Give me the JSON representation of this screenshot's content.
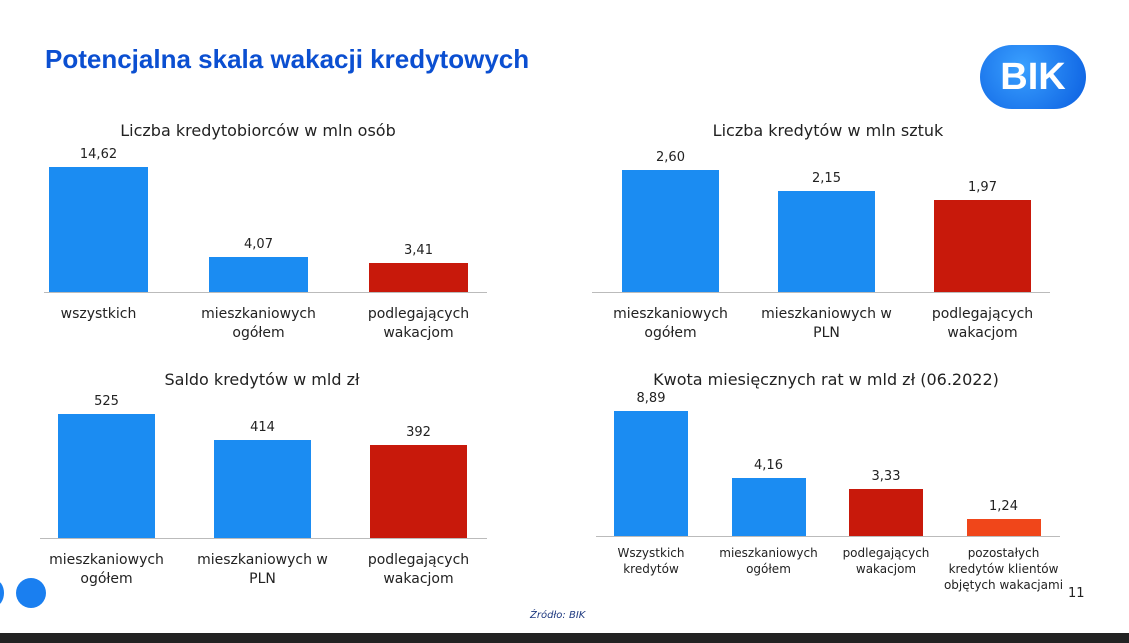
{
  "header": {
    "title": "Potencjalna skala wakacji kredytowych",
    "logo": "BIK"
  },
  "footer": {
    "source": "Źródło: BIK",
    "page": "11"
  },
  "chart_data": [
    {
      "type": "bar",
      "title": "Liczba kredytobiorców w mln osób",
      "categories": [
        "wszystkich",
        "mieszkaniowych\nogółem",
        "podlegających\nwakacjom"
      ],
      "values": [
        14.62,
        4.07,
        3.41
      ],
      "value_labels": [
        "14,62",
        "4,07",
        "3,41"
      ],
      "colors": [
        "#1b8cf2",
        "#1b8cf2",
        "#c8190b"
      ]
    },
    {
      "type": "bar",
      "title": "Liczba kredytów w mln sztuk",
      "categories": [
        "mieszkaniowych\nogółem",
        "mieszkaniowych w\nPLN",
        "podlegających\nwakacjom"
      ],
      "values": [
        2.6,
        2.15,
        1.97
      ],
      "value_labels": [
        "2,60",
        "2,15",
        "1,97"
      ],
      "colors": [
        "#1b8cf2",
        "#1b8cf2",
        "#c8190b"
      ]
    },
    {
      "type": "bar",
      "title": "Saldo kredytów w mld zł",
      "categories": [
        "mieszkaniowych\nogółem",
        "mieszkaniowych w\nPLN",
        "podlegających\nwakacjom"
      ],
      "values": [
        525,
        414,
        392
      ],
      "colors": [
        "#1b8cf2",
        "#1b8cf2",
        "#c8190b"
      ]
    },
    {
      "type": "bar",
      "title": "Kwota miesięcznych rat w mld zł (06.2022)",
      "categories": [
        "Wszystkich\nkredytów",
        "mieszkaniowych\nogółem",
        "podlegających\nwakacjom",
        "pozostałych\nkredytów klientów\nobjętych wakacjami"
      ],
      "values": [
        8.89,
        4.16,
        3.33,
        1.24
      ],
      "value_labels": [
        "8,89",
        "4,16",
        "3,33",
        "1,24"
      ],
      "colors": [
        "#1b8cf2",
        "#1b8cf2",
        "#c8190b",
        "#f0461a"
      ]
    }
  ]
}
